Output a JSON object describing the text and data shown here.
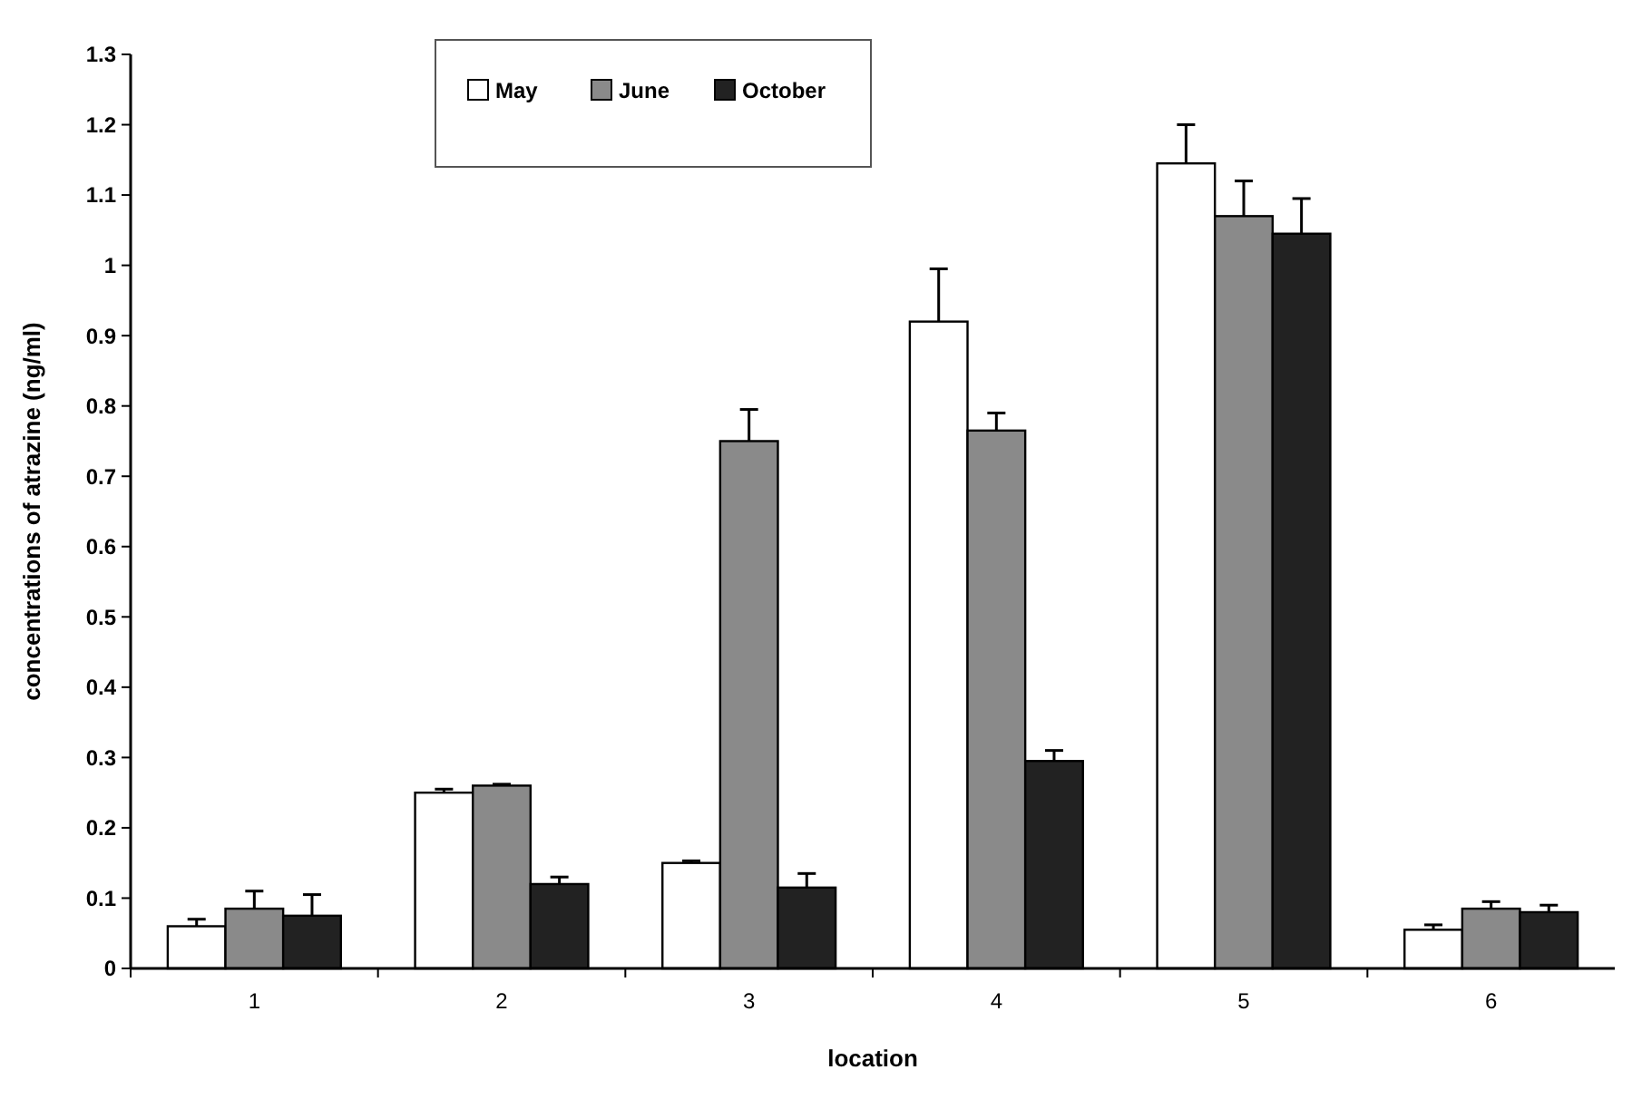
{
  "chart_data": {
    "type": "bar",
    "xlabel": "location",
    "ylabel": "concentrations of atrazine (ng/ml)",
    "categories": [
      "1",
      "2",
      "3",
      "4",
      "5",
      "6"
    ],
    "series": [
      {
        "name": "May",
        "color": "#ffffff",
        "values": [
          0.06,
          0.25,
          0.15,
          0.92,
          1.145,
          0.055
        ],
        "errors": [
          [
            0.06,
            0.07
          ],
          [
            0.25,
            0.255
          ],
          [
            0.15,
            0.153
          ],
          [
            0.92,
            0.995
          ],
          [
            1.145,
            1.2
          ],
          [
            0.055,
            0.062
          ]
        ]
      },
      {
        "name": "June",
        "color": "#8a8a8a",
        "values": [
          0.085,
          0.26,
          0.75,
          0.765,
          1.07,
          0.085
        ],
        "errors": [
          [
            0.085,
            0.11
          ],
          [
            0.26,
            0.262
          ],
          [
            0.75,
            0.795
          ],
          [
            0.765,
            0.79
          ],
          [
            1.07,
            1.12
          ],
          [
            0.085,
            0.095
          ]
        ]
      },
      {
        "name": "October",
        "color": "#222222",
        "values": [
          0.075,
          0.12,
          0.115,
          0.295,
          1.045,
          0.08
        ],
        "errors": [
          [
            0.075,
            0.105
          ],
          [
            0.12,
            0.13
          ],
          [
            0.115,
            0.135
          ],
          [
            0.295,
            0.31
          ],
          [
            1.045,
            1.095
          ],
          [
            0.08,
            0.09
          ]
        ]
      }
    ],
    "ylim": [
      0,
      1.3
    ],
    "yticks": [
      0,
      0.1,
      0.2,
      0.3,
      0.4,
      0.5,
      0.6,
      0.7,
      0.8,
      0.9,
      1,
      1.1,
      1.2,
      1.3
    ],
    "grid": false,
    "legend": "top"
  }
}
